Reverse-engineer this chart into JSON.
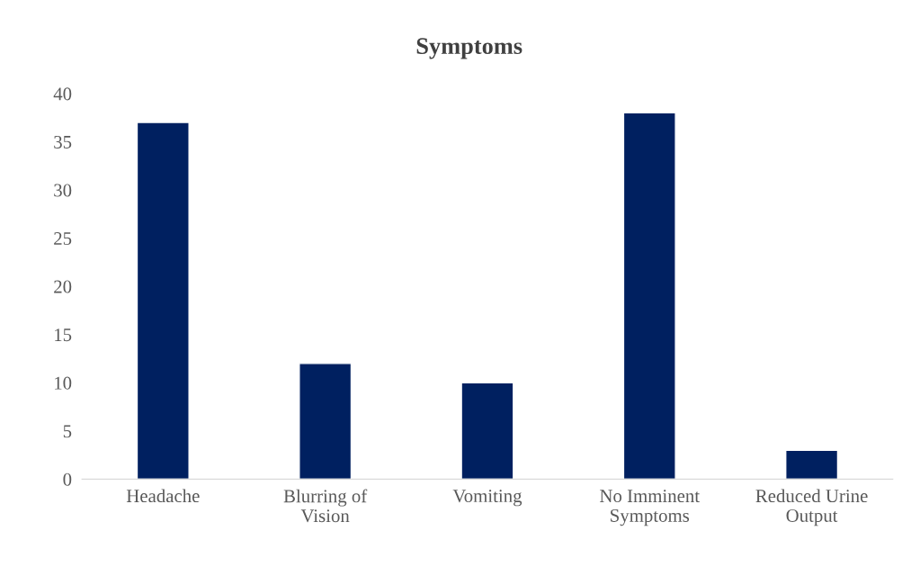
{
  "chart_data": {
    "type": "bar",
    "title": "Symptoms",
    "categories": [
      "Headache",
      "Blurring of\nVision",
      "Vomiting",
      "No Imminent\nSymptoms",
      "Reduced Urine\nOutput"
    ],
    "values": [
      37,
      12,
      10,
      38,
      3
    ],
    "color": "#002060",
    "ylim": [
      0,
      40
    ],
    "yticks": [
      0,
      5,
      10,
      15,
      20,
      25,
      30,
      35,
      40
    ],
    "grid": false
  }
}
